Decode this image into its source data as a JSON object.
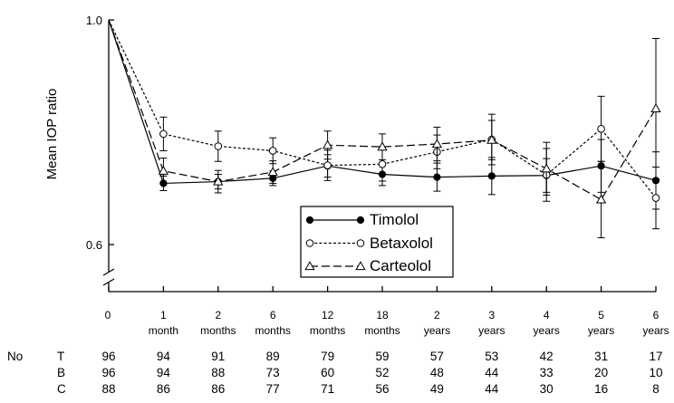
{
  "chart_data": {
    "type": "line",
    "ylabel": "Mean IOP ratio",
    "y_ticks": [
      "1.0",
      "0.6"
    ],
    "ylim": [
      0.5,
      1.0
    ],
    "y_axis_break": true,
    "categories": [
      {
        "top": "0",
        "bottom": ""
      },
      {
        "top": "1",
        "bottom": "month"
      },
      {
        "top": "2",
        "bottom": "months"
      },
      {
        "top": "6",
        "bottom": "months"
      },
      {
        "top": "12",
        "bottom": "months"
      },
      {
        "top": "18",
        "bottom": "months"
      },
      {
        "top": "2",
        "bottom": "years"
      },
      {
        "top": "3",
        "bottom": "years"
      },
      {
        "top": "4",
        "bottom": "years"
      },
      {
        "top": "5",
        "bottom": "years"
      },
      {
        "top": "6",
        "bottom": "years"
      }
    ],
    "legend_position": "lower-center",
    "series": [
      {
        "name": "Timolol",
        "marker": "filled-circle",
        "dash": "solid",
        "values": [
          1.0,
          0.709,
          0.712,
          0.718,
          0.74,
          0.725,
          0.72,
          0.722,
          0.723,
          0.74,
          0.714
        ],
        "errors": [
          0,
          0.013,
          0.013,
          0.013,
          0.02,
          0.02,
          0.025,
          0.033,
          0.03,
          0.047,
          0.051
        ]
      },
      {
        "name": "Betaxolol",
        "marker": "open-circle",
        "dash": "short-dash",
        "values": [
          1.0,
          0.797,
          0.775,
          0.767,
          0.741,
          0.743,
          0.765,
          0.787,
          0.724,
          0.806,
          0.683
        ],
        "errors": [
          0,
          0.03,
          0.027,
          0.023,
          0.027,
          0.03,
          0.03,
          0.045,
          0.047,
          0.058,
          0.055
        ]
      },
      {
        "name": "Carteolol",
        "marker": "open-triangle",
        "dash": "long-dash",
        "values": [
          1.0,
          0.731,
          0.712,
          0.729,
          0.777,
          0.774,
          0.779,
          0.786,
          0.735,
          0.68,
          0.842
        ],
        "errors": [
          0,
          0.023,
          0.02,
          0.02,
          0.025,
          0.023,
          0.03,
          0.035,
          0.047,
          0.068,
          0.125
        ]
      }
    ],
    "table": {
      "header": "No",
      "rows": [
        {
          "label": "T",
          "values": [
            "96",
            "94",
            "91",
            "89",
            "79",
            "59",
            "57",
            "53",
            "42",
            "31",
            "17"
          ]
        },
        {
          "label": "B",
          "values": [
            "96",
            "94",
            "88",
            "73",
            "60",
            "52",
            "48",
            "44",
            "33",
            "20",
            "10"
          ]
        },
        {
          "label": "C",
          "values": [
            "88",
            "86",
            "86",
            "77",
            "71",
            "56",
            "49",
            "44",
            "30",
            "16",
            "8"
          ]
        }
      ]
    }
  }
}
